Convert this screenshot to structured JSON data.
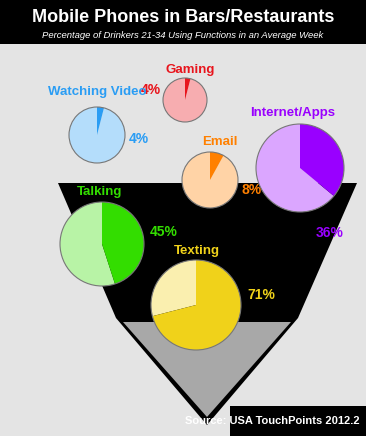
{
  "chart_data": {
    "type": "pie",
    "title": "Mobile Phones in Bars/Restaurants",
    "subtitle": "Percentage of Drinkers 21-34 Using Functions in an Average Week",
    "categories": [
      "Gaming",
      "Watching Video",
      "Email",
      "Internet/Apps",
      "Talking",
      "Texting"
    ],
    "values": [
      4,
      4,
      8,
      36,
      45,
      71
    ],
    "value_labels": [
      "4%",
      "4%",
      "8%",
      "36%",
      "45%",
      "71%"
    ],
    "colors": [
      "#e8141c",
      "#2a9df4",
      "#ff8000",
      "#9900ff",
      "#33dd00",
      "#f0d21a"
    ],
    "annotations": [
      "Source: USA TouchPoints 2012.2"
    ]
  }
}
